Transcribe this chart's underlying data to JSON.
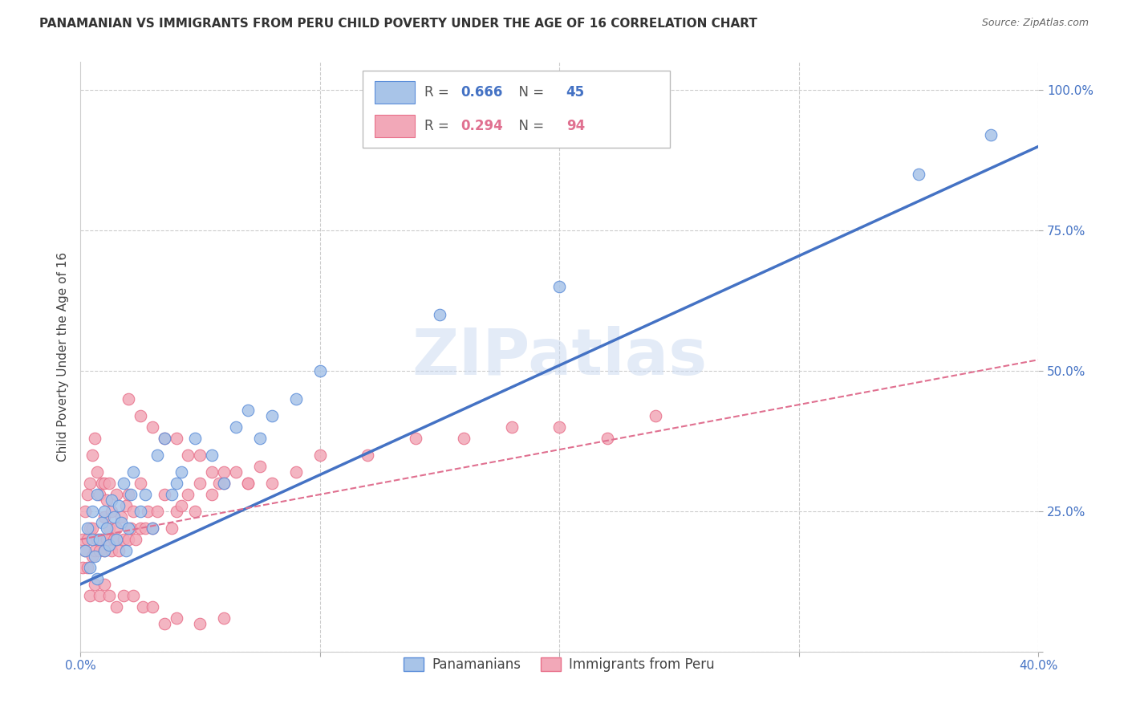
{
  "title": "PANAMANIAN VS IMMIGRANTS FROM PERU CHILD POVERTY UNDER THE AGE OF 16 CORRELATION CHART",
  "source": "Source: ZipAtlas.com",
  "ylabel": "Child Poverty Under the Age of 16",
  "xlim": [
    0.0,
    0.4
  ],
  "ylim": [
    0.0,
    1.05
  ],
  "xticks": [
    0.0,
    0.1,
    0.2,
    0.3,
    0.4
  ],
  "xticklabels": [
    "0.0%",
    "",
    "",
    "",
    "40.0%"
  ],
  "yticks": [
    0.0,
    0.25,
    0.5,
    0.75,
    1.0
  ],
  "yticklabels": [
    "",
    "25.0%",
    "50.0%",
    "75.0%",
    "100.0%"
  ],
  "blue_R": 0.666,
  "blue_N": 45,
  "pink_R": 0.294,
  "pink_N": 94,
  "blue_color": "#a8c4e8",
  "pink_color": "#f2a8b8",
  "blue_edge_color": "#5b8dd9",
  "pink_edge_color": "#e8708a",
  "blue_line_color": "#4472c4",
  "pink_line_color": "#e07090",
  "watermark": "ZIPatlas",
  "legend_label_blue": "Panamanians",
  "legend_label_pink": "Immigrants from Peru",
  "blue_scatter_x": [
    0.002,
    0.003,
    0.004,
    0.005,
    0.005,
    0.006,
    0.007,
    0.007,
    0.008,
    0.009,
    0.01,
    0.01,
    0.011,
    0.012,
    0.013,
    0.014,
    0.015,
    0.016,
    0.017,
    0.018,
    0.019,
    0.02,
    0.021,
    0.022,
    0.025,
    0.027,
    0.03,
    0.032,
    0.035,
    0.038,
    0.04,
    0.042,
    0.048,
    0.055,
    0.06,
    0.065,
    0.07,
    0.075,
    0.08,
    0.09,
    0.1,
    0.15,
    0.2,
    0.35,
    0.38
  ],
  "blue_scatter_y": [
    0.18,
    0.22,
    0.15,
    0.2,
    0.25,
    0.17,
    0.13,
    0.28,
    0.2,
    0.23,
    0.18,
    0.25,
    0.22,
    0.19,
    0.27,
    0.24,
    0.2,
    0.26,
    0.23,
    0.3,
    0.18,
    0.22,
    0.28,
    0.32,
    0.25,
    0.28,
    0.22,
    0.35,
    0.38,
    0.28,
    0.3,
    0.32,
    0.38,
    0.35,
    0.3,
    0.4,
    0.43,
    0.38,
    0.42,
    0.45,
    0.5,
    0.6,
    0.65,
    0.85,
    0.92
  ],
  "pink_scatter_x": [
    0.001,
    0.001,
    0.002,
    0.002,
    0.003,
    0.003,
    0.003,
    0.004,
    0.004,
    0.005,
    0.005,
    0.005,
    0.006,
    0.006,
    0.007,
    0.007,
    0.008,
    0.008,
    0.009,
    0.009,
    0.01,
    0.01,
    0.01,
    0.011,
    0.011,
    0.012,
    0.012,
    0.013,
    0.013,
    0.014,
    0.015,
    0.015,
    0.016,
    0.017,
    0.018,
    0.019,
    0.02,
    0.02,
    0.021,
    0.022,
    0.023,
    0.025,
    0.025,
    0.027,
    0.028,
    0.03,
    0.032,
    0.035,
    0.038,
    0.04,
    0.042,
    0.045,
    0.048,
    0.05,
    0.055,
    0.058,
    0.06,
    0.065,
    0.07,
    0.075,
    0.08,
    0.09,
    0.1,
    0.12,
    0.14,
    0.16,
    0.18,
    0.2,
    0.22,
    0.24,
    0.004,
    0.006,
    0.008,
    0.01,
    0.012,
    0.015,
    0.018,
    0.022,
    0.026,
    0.03,
    0.035,
    0.04,
    0.05,
    0.06,
    0.02,
    0.025,
    0.03,
    0.035,
    0.04,
    0.045,
    0.05,
    0.055,
    0.06,
    0.07
  ],
  "pink_scatter_y": [
    0.15,
    0.2,
    0.18,
    0.25,
    0.15,
    0.2,
    0.28,
    0.22,
    0.3,
    0.17,
    0.22,
    0.35,
    0.18,
    0.38,
    0.2,
    0.32,
    0.18,
    0.28,
    0.2,
    0.3,
    0.18,
    0.24,
    0.3,
    0.2,
    0.27,
    0.22,
    0.3,
    0.18,
    0.25,
    0.2,
    0.22,
    0.28,
    0.18,
    0.24,
    0.2,
    0.26,
    0.2,
    0.28,
    0.22,
    0.25,
    0.2,
    0.22,
    0.3,
    0.22,
    0.25,
    0.22,
    0.25,
    0.28,
    0.22,
    0.25,
    0.26,
    0.28,
    0.25,
    0.3,
    0.28,
    0.3,
    0.3,
    0.32,
    0.3,
    0.33,
    0.3,
    0.32,
    0.35,
    0.35,
    0.38,
    0.38,
    0.4,
    0.4,
    0.38,
    0.42,
    0.1,
    0.12,
    0.1,
    0.12,
    0.1,
    0.08,
    0.1,
    0.1,
    0.08,
    0.08,
    0.05,
    0.06,
    0.05,
    0.06,
    0.45,
    0.42,
    0.4,
    0.38,
    0.38,
    0.35,
    0.35,
    0.32,
    0.32,
    0.3
  ],
  "blue_line_x": [
    0.0,
    0.4
  ],
  "blue_line_y": [
    0.12,
    0.9
  ],
  "pink_line_x": [
    0.0,
    0.4
  ],
  "pink_line_y": [
    0.2,
    0.52
  ],
  "background_color": "#ffffff",
  "grid_color": "#cccccc",
  "title_fontsize": 11,
  "tick_color": "#4472c4"
}
